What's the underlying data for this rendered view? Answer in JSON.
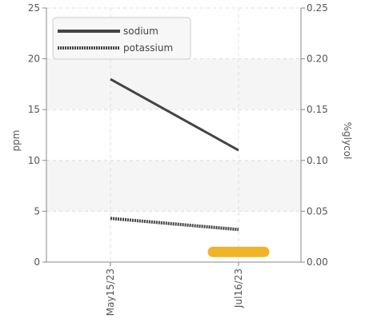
{
  "chart_data": {
    "type": "line",
    "x": [
      "May15/23",
      "Jul16/23"
    ],
    "series": [
      {
        "name": "sodium",
        "values": [
          18,
          11
        ],
        "axis": "left",
        "color": "#444444",
        "style": "solid"
      },
      {
        "name": "potassium",
        "values": [
          4.3,
          3.2
        ],
        "axis": "left",
        "color": "#444444",
        "style": "dotted"
      },
      {
        "name": "glycol",
        "values": [
          null,
          0.01
        ],
        "axis": "right",
        "color": "#f0b429",
        "style": "bar"
      }
    ],
    "ylabel": "ppm",
    "y2label": "%glycol",
    "ylim": [
      0,
      25
    ],
    "y2lim": [
      0,
      0.25
    ],
    "yticks": [
      "0",
      "5",
      "10",
      "15",
      "20",
      "25"
    ],
    "y2ticks": [
      "0.00",
      "0.05",
      "0.10",
      "0.15",
      "0.20",
      "0.25"
    ],
    "grid": true,
    "legend": "top-left"
  }
}
